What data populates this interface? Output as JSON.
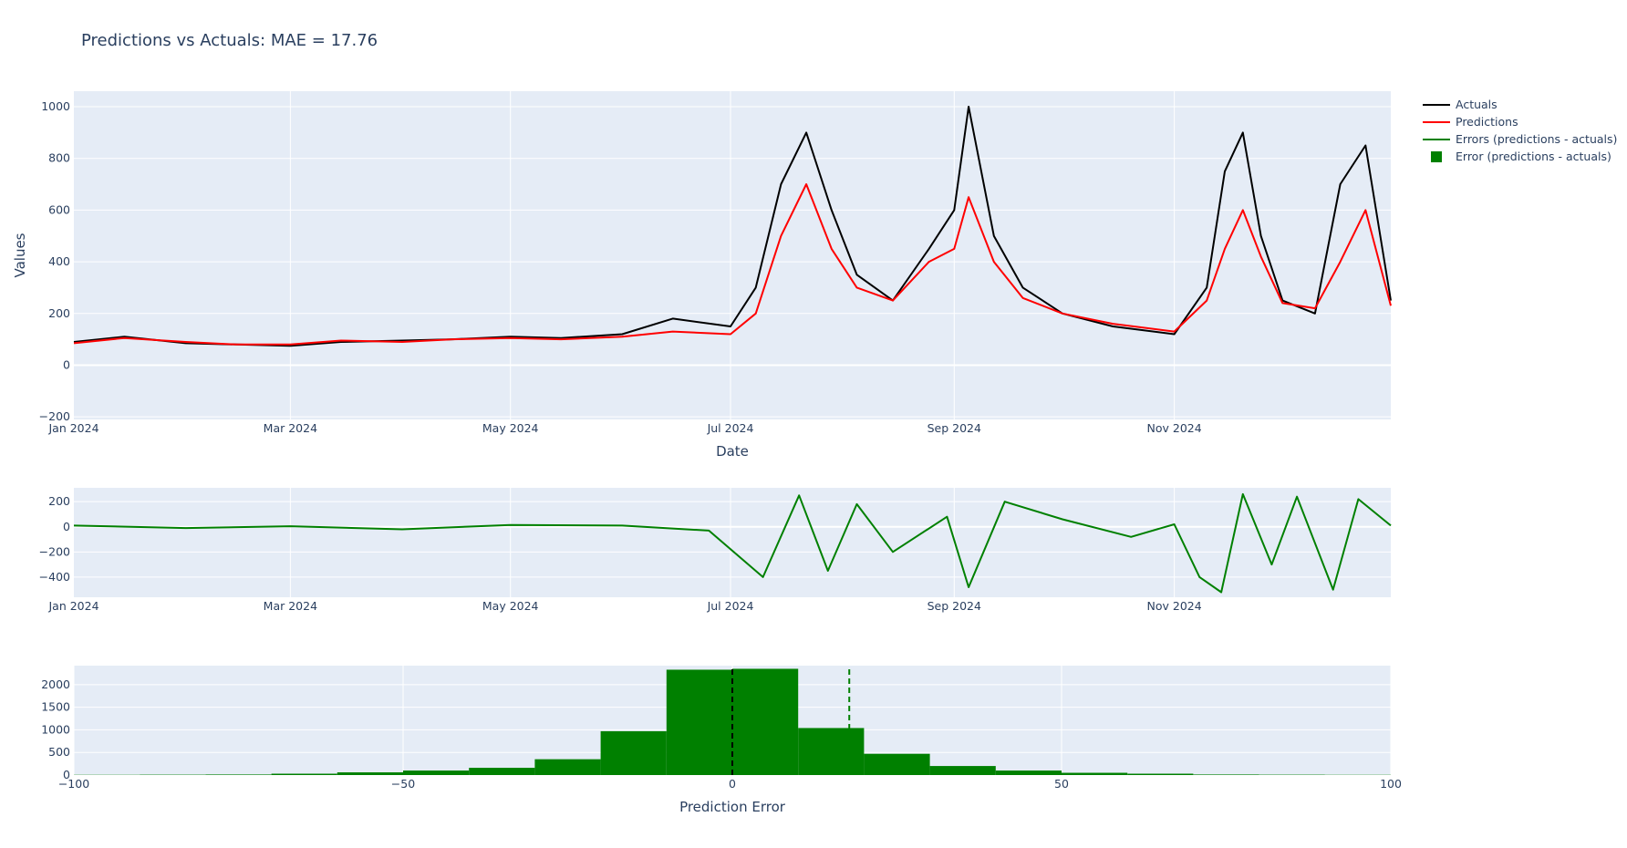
{
  "chart_data": [
    {
      "type": "line",
      "title": "Predictions vs Actuals: MAE = 17.76",
      "xlabel": "Date",
      "ylabel": "Values",
      "x_range": [
        "2024-01-01",
        "2024-12-31"
      ],
      "ylim": [
        -210,
        1060
      ],
      "x_ticks": [
        "Jan 2024",
        "Mar 2024",
        "May 2024",
        "Jul 2024",
        "Sep 2024",
        "Nov 2024"
      ],
      "x_tick_dates": [
        "2024-01-01",
        "2024-03-01",
        "2024-05-01",
        "2024-07-01",
        "2024-09-01",
        "2024-11-01"
      ],
      "y_ticks": [
        -200,
        0,
        200,
        400,
        600,
        800,
        1000
      ],
      "grid": true,
      "legend_position": "top-right",
      "series": [
        {
          "name": "Actuals",
          "color": "#000000",
          "x": [
            "2024-01-01",
            "2024-01-15",
            "2024-02-01",
            "2024-02-15",
            "2024-03-01",
            "2024-03-15",
            "2024-04-01",
            "2024-04-15",
            "2024-05-01",
            "2024-05-15",
            "2024-06-01",
            "2024-06-15",
            "2024-07-01",
            "2024-07-08",
            "2024-07-15",
            "2024-07-22",
            "2024-07-29",
            "2024-08-05",
            "2024-08-15",
            "2024-08-25",
            "2024-09-01",
            "2024-09-05",
            "2024-09-12",
            "2024-09-20",
            "2024-10-01",
            "2024-10-15",
            "2024-11-01",
            "2024-11-10",
            "2024-11-15",
            "2024-11-20",
            "2024-11-25",
            "2024-12-01",
            "2024-12-10",
            "2024-12-17",
            "2024-12-24",
            "2024-12-31"
          ],
          "y": [
            90,
            110,
            85,
            80,
            75,
            90,
            95,
            100,
            110,
            105,
            120,
            180,
            150,
            300,
            700,
            900,
            600,
            350,
            250,
            450,
            600,
            1000,
            500,
            300,
            200,
            150,
            120,
            300,
            750,
            900,
            500,
            250,
            200,
            700,
            850,
            250
          ]
        },
        {
          "name": "Predictions",
          "color": "#ff0000",
          "x": [
            "2024-01-01",
            "2024-01-15",
            "2024-02-01",
            "2024-02-15",
            "2024-03-01",
            "2024-03-15",
            "2024-04-01",
            "2024-04-15",
            "2024-05-01",
            "2024-05-15",
            "2024-06-01",
            "2024-06-15",
            "2024-07-01",
            "2024-07-08",
            "2024-07-15",
            "2024-07-22",
            "2024-07-29",
            "2024-08-05",
            "2024-08-15",
            "2024-08-25",
            "2024-09-01",
            "2024-09-05",
            "2024-09-12",
            "2024-09-20",
            "2024-10-01",
            "2024-10-15",
            "2024-11-01",
            "2024-11-10",
            "2024-11-15",
            "2024-11-20",
            "2024-11-25",
            "2024-12-01",
            "2024-12-10",
            "2024-12-17",
            "2024-12-24",
            "2024-12-31"
          ],
          "y": [
            85,
            105,
            90,
            80,
            80,
            95,
            90,
            100,
            105,
            100,
            110,
            130,
            120,
            200,
            500,
            700,
            450,
            300,
            250,
            400,
            450,
            650,
            400,
            260,
            200,
            160,
            130,
            250,
            450,
            600,
            420,
            240,
            220,
            400,
            600,
            230
          ]
        }
      ]
    },
    {
      "type": "line",
      "x_range": [
        "2024-01-01",
        "2024-12-31"
      ],
      "ylim": [
        -560,
        310
      ],
      "x_ticks": [
        "Jan 2024",
        "Mar 2024",
        "May 2024",
        "Jul 2024",
        "Sep 2024",
        "Nov 2024"
      ],
      "x_tick_dates": [
        "2024-01-01",
        "2024-03-01",
        "2024-05-01",
        "2024-07-01",
        "2024-09-01",
        "2024-11-01"
      ],
      "y_ticks": [
        -400,
        -200,
        0,
        200
      ],
      "grid": true,
      "series": [
        {
          "name": "Errors (predictions - actuals)",
          "color": "#008000",
          "x": [
            "2024-01-01",
            "2024-02-01",
            "2024-03-01",
            "2024-04-01",
            "2024-05-01",
            "2024-06-01",
            "2024-06-25",
            "2024-07-10",
            "2024-07-20",
            "2024-07-28",
            "2024-08-05",
            "2024-08-15",
            "2024-08-30",
            "2024-09-05",
            "2024-09-15",
            "2024-10-01",
            "2024-10-20",
            "2024-11-01",
            "2024-11-08",
            "2024-11-14",
            "2024-11-20",
            "2024-11-28",
            "2024-12-05",
            "2024-12-15",
            "2024-12-22",
            "2024-12-31"
          ],
          "y": [
            10,
            -10,
            5,
            -20,
            15,
            10,
            -30,
            -400,
            250,
            -350,
            180,
            -200,
            80,
            -480,
            200,
            60,
            -80,
            20,
            -400,
            -520,
            260,
            -300,
            240,
            -500,
            220,
            10
          ]
        }
      ]
    },
    {
      "type": "bar",
      "xlabel": "Prediction Error",
      "xlim": [
        -100,
        100
      ],
      "ylim": [
        0,
        2420
      ],
      "x_ticks": [
        -100,
        -50,
        0,
        50,
        100
      ],
      "y_ticks": [
        0,
        500,
        1000,
        1500,
        2000
      ],
      "grid": true,
      "bin_width": 10,
      "series": [
        {
          "name": "Error (predictions - actuals)",
          "color": "#008000",
          "bin_starts": [
            -100,
            -90,
            -80,
            -70,
            -60,
            -50,
            -40,
            -30,
            -20,
            -10,
            0,
            10,
            20,
            30,
            40,
            50,
            60,
            70,
            80,
            90
          ],
          "values": [
            5,
            8,
            12,
            30,
            60,
            100,
            160,
            350,
            970,
            2330,
            2350,
            1040,
            470,
            200,
            100,
            50,
            30,
            12,
            8,
            5
          ]
        }
      ],
      "reference_lines": [
        {
          "x": 0,
          "color": "#000000",
          "dash": true
        },
        {
          "x": 17.76,
          "color": "#008000",
          "dash": true
        }
      ]
    }
  ],
  "legend": [
    {
      "label": "Actuals",
      "color": "#000000",
      "kind": "line"
    },
    {
      "label": "Predictions",
      "color": "#ff0000",
      "kind": "line"
    },
    {
      "label": "Errors (predictions - actuals)",
      "color": "#008000",
      "kind": "line"
    },
    {
      "label": "Error (predictions - actuals)",
      "color": "#008000",
      "kind": "square"
    }
  ],
  "colors": {
    "plot_bg": "#e5ecf6",
    "grid": "#ffffff",
    "text": "#2a3f5f"
  }
}
